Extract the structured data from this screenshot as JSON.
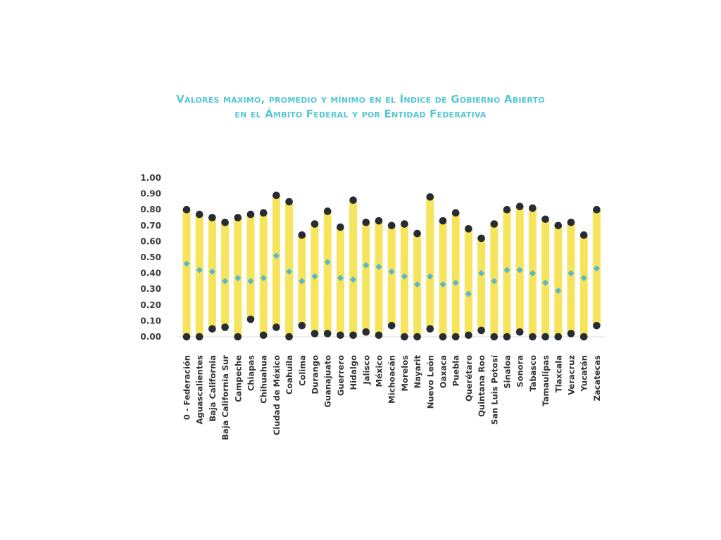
{
  "chart_data": {
    "type": "range-dot",
    "title_lines": [
      "Valores máximo, promedio y mínimo en el Índice de Gobierno Abierto",
      "en el Ámbito Federal y por Entidad Federativa"
    ],
    "yticks": [
      "0.00",
      "0.10",
      "0.20",
      "0.30",
      "0.40",
      "0.50",
      "0.60",
      "0.70",
      "0.80",
      "0.90",
      "1.00"
    ],
    "ylim": [
      0,
      1
    ],
    "categories": [
      "0 - Federación",
      "Aguascalientes",
      "Baja California",
      "Baja California Sur",
      "Campeche",
      "Chiapas",
      "Chihuahua",
      "Ciudad de México",
      "Coahuila",
      "Colima",
      "Durango",
      "Guanajuato",
      "Guerrero",
      "Hidalgo",
      "Jalisco",
      "México",
      "Michoacán",
      "Morelos",
      "Nayarit",
      "Nuevo León",
      "Oaxaca",
      "Puebla",
      "Querétaro",
      "Quintana Roo",
      "San Luis Potosí",
      "Sinaloa",
      "Sonora",
      "Tabasco",
      "Tamaulipas",
      "Tlaxcala",
      "Veracruz",
      "Yucatán",
      "Zacatecas"
    ],
    "series": [
      {
        "role": "max",
        "values": [
          0.8,
          0.77,
          0.75,
          0.72,
          0.75,
          0.77,
          0.78,
          0.89,
          0.85,
          0.64,
          0.71,
          0.79,
          0.69,
          0.86,
          0.72,
          0.73,
          0.7,
          0.71,
          0.65,
          0.88,
          0.73,
          0.78,
          0.68,
          0.62,
          0.71,
          0.8,
          0.82,
          0.81,
          0.74,
          0.7,
          0.72,
          0.64,
          0.8
        ]
      },
      {
        "role": "avg",
        "values": [
          0.46,
          0.42,
          0.41,
          0.35,
          0.37,
          0.35,
          0.37,
          0.51,
          0.41,
          0.35,
          0.38,
          0.47,
          0.37,
          0.36,
          0.45,
          0.44,
          0.41,
          0.38,
          0.33,
          0.38,
          0.33,
          0.34,
          0.27,
          0.4,
          0.35,
          0.42,
          0.42,
          0.4,
          0.34,
          0.29,
          0.4,
          0.37,
          0.43
        ]
      },
      {
        "role": "min",
        "values": [
          0.0,
          0.0,
          0.05,
          0.06,
          0.0,
          0.11,
          0.01,
          0.06,
          0.0,
          0.07,
          0.02,
          0.02,
          0.01,
          0.01,
          0.03,
          0.01,
          0.07,
          0.0,
          0.0,
          0.05,
          0.0,
          0.0,
          0.01,
          0.04,
          0.0,
          0.0,
          0.03,
          0.0,
          0.0,
          0.0,
          0.02,
          0.0,
          0.07
        ]
      }
    ],
    "grid": false,
    "legend": "none",
    "colors": {
      "bar": "#F7E45D",
      "max_dot": "#262C33",
      "min_dot": "#262C33",
      "avg_marker": "#5BB8C8",
      "title": "#56C6D4",
      "baseline": "#d9d9d9"
    }
  }
}
